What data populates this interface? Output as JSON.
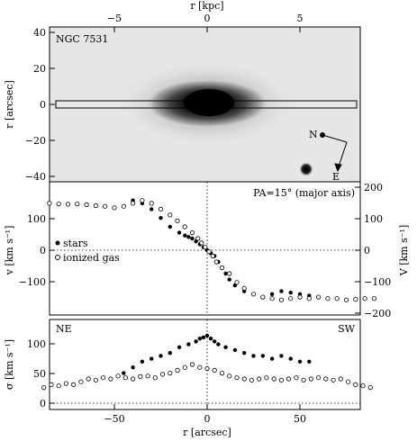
{
  "top_axis": {
    "label": "r [kpc]",
    "ticks": [
      "−5",
      "0",
      "5"
    ]
  },
  "image_panel": {
    "title": "NGC 7531",
    "ylabel": "r [arcsec]",
    "y_ticks": [
      "40",
      "20",
      "0",
      "−20",
      "−40"
    ],
    "compass_n": "N",
    "compass_e": "E"
  },
  "velocity_panel": {
    "annotation": "PA=15° (major axis)",
    "ylabel_left": "v [km s⁻¹]",
    "ylabel_right": "V [km s⁻¹]",
    "left_ticks": [
      "100",
      "0",
      "−100"
    ],
    "right_ticks": [
      "200",
      "100",
      "0",
      "−100",
      "−200"
    ],
    "legend_stars": "stars",
    "legend_gas": "ionized gas"
  },
  "dispersion_panel": {
    "ylabel": "σ [km s⁻¹]",
    "y_ticks": [
      "100",
      "50",
      "0"
    ],
    "label_ne": "NE",
    "label_sw": "SW"
  },
  "bottom_axis": {
    "label": "r [arcsec]",
    "ticks": [
      "−50",
      "0",
      "50"
    ]
  },
  "chart_data": [
    {
      "type": "scatter",
      "panel": "velocity",
      "xlabel": "r [arcsec]",
      "ylabel": "v [km s⁻¹]",
      "xlim": [
        -90,
        95
      ],
      "ylim": [
        -215,
        215
      ],
      "series": [
        {
          "name": "stars",
          "marker": "filled-circle",
          "x": [
            -40,
            -35,
            -30,
            -25,
            -20,
            -15,
            -12,
            -10,
            -8,
            -6,
            -4,
            -2,
            0,
            2,
            4,
            6,
            8,
            10,
            12,
            15,
            20,
            25,
            30,
            35,
            40,
            45,
            50,
            55
          ],
          "y": [
            170,
            160,
            140,
            110,
            80,
            60,
            50,
            45,
            40,
            30,
            20,
            10,
            0,
            -10,
            -20,
            -40,
            -60,
            -80,
            -100,
            -120,
            -140,
            -150,
            -160,
            -150,
            -140,
            -145,
            -150,
            -155
          ]
        },
        {
          "name": "ionized gas",
          "marker": "open-circle",
          "x": [
            -85,
            -80,
            -75,
            -70,
            -65,
            -60,
            -55,
            -50,
            -45,
            -40,
            -35,
            -30,
            -25,
            -20,
            -16,
            -12,
            -8,
            -5,
            -3,
            -1,
            1,
            3,
            5,
            8,
            12,
            16,
            20,
            25,
            30,
            35,
            40,
            45,
            50,
            55,
            60,
            65,
            70,
            75,
            80,
            85,
            90
          ],
          "y": [
            160,
            158,
            157,
            158,
            155,
            152,
            150,
            145,
            150,
            160,
            170,
            160,
            140,
            120,
            100,
            80,
            60,
            40,
            25,
            10,
            -5,
            -20,
            -40,
            -60,
            -80,
            -110,
            -130,
            -150,
            -160,
            -165,
            -170,
            -165,
            -160,
            -165,
            -160,
            -165,
            -165,
            -170,
            -168,
            -165,
            -165
          ]
        }
      ]
    },
    {
      "type": "scatter",
      "panel": "dispersion",
      "xlabel": "r [arcsec]",
      "ylabel": "σ [km s⁻¹]",
      "xlim": [
        -90,
        95
      ],
      "ylim": [
        -10,
        140
      ],
      "series": [
        {
          "name": "stars",
          "marker": "filled-circle",
          "x": [
            -45,
            -40,
            -35,
            -30,
            -25,
            -20,
            -15,
            -10,
            -6,
            -4,
            -2,
            0,
            2,
            4,
            6,
            10,
            15,
            20,
            25,
            30,
            35,
            40,
            45,
            50,
            55
          ],
          "y": [
            50,
            60,
            70,
            75,
            80,
            85,
            95,
            100,
            105,
            110,
            112,
            115,
            110,
            105,
            100,
            95,
            90,
            85,
            80,
            80,
            75,
            80,
            75,
            70,
            70
          ]
        },
        {
          "name": "ionized gas",
          "marker": "open-circle",
          "x": [
            -88,
            -84,
            -80,
            -76,
            -72,
            -68,
            -64,
            -60,
            -56,
            -52,
            -48,
            -44,
            -40,
            -36,
            -32,
            -28,
            -24,
            -20,
            -16,
            -12,
            -8,
            -4,
            0,
            4,
            8,
            12,
            16,
            20,
            24,
            28,
            32,
            36,
            40,
            44,
            48,
            52,
            56,
            60,
            64,
            68,
            72,
            76,
            80,
            84,
            88
          ],
          "y": [
            25,
            30,
            28,
            32,
            30,
            35,
            40,
            38,
            42,
            40,
            45,
            42,
            40,
            44,
            45,
            42,
            48,
            50,
            55,
            60,
            65,
            60,
            58,
            55,
            50,
            45,
            42,
            40,
            38,
            40,
            42,
            40,
            38,
            40,
            42,
            38,
            40,
            42,
            40,
            38,
            40,
            35,
            30,
            28,
            25
          ]
        }
      ]
    }
  ]
}
